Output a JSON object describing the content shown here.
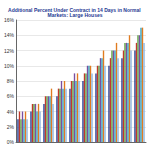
{
  "chart_data": {
    "type": "bar",
    "title": "Additional Percent Under Contract in 14 Days in Normal Markets: Large Houses",
    "categories": [
      null,
      null,
      null,
      null,
      null,
      null,
      null,
      null,
      null,
      null
    ],
    "series": [
      {
        "color": "#1f3a93",
        "values": [
          3,
          4,
          5,
          6,
          7,
          8,
          9,
          10,
          11,
          12
        ]
      },
      {
        "color": "#c0392b",
        "values": [
          4,
          5,
          6,
          7,
          8,
          9,
          10,
          11,
          12,
          13
        ]
      },
      {
        "color": "#5a9e3a",
        "values": [
          3,
          5,
          6,
          7,
          8,
          9,
          10,
          12,
          13,
          14
        ]
      },
      {
        "color": "#7b4fa0",
        "values": [
          4,
          5,
          6,
          8,
          9,
          10,
          11,
          12,
          13,
          14
        ]
      },
      {
        "color": "#2aa0c0",
        "values": [
          3,
          4,
          6,
          7,
          8,
          10,
          11,
          12,
          13,
          15
        ]
      },
      {
        "color": "#e07b20",
        "values": [
          4,
          5,
          7,
          8,
          9,
          10,
          12,
          13,
          14,
          15
        ]
      },
      {
        "color": "#8ab4e0",
        "values": [
          3,
          4,
          5,
          7,
          8,
          9,
          10,
          11,
          12,
          13
        ]
      }
    ],
    "ylim": [
      0,
      16
    ],
    "yticks": [
      {
        "value": 0,
        "label": "0%"
      },
      {
        "value": 2,
        "label": "2%"
      },
      {
        "value": 4,
        "label": "4%"
      },
      {
        "value": 6,
        "label": "6%"
      },
      {
        "value": 8,
        "label": "8%"
      },
      {
        "value": 10,
        "label": "10%"
      },
      {
        "value": 12,
        "label": "12%"
      },
      {
        "value": 14,
        "label": "14%"
      },
      {
        "value": 16,
        "label": "16%"
      }
    ],
    "grid": true
  }
}
